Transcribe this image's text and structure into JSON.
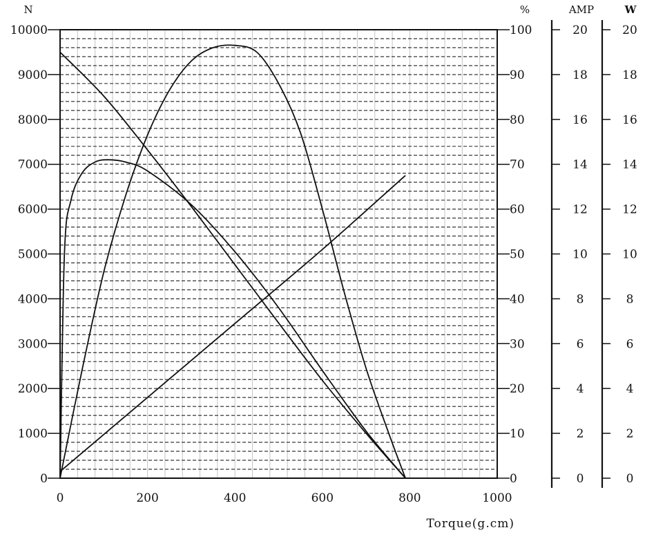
{
  "chart_data": {
    "type": "line",
    "xlabel": "Torque(g.cm)",
    "x_ticks": [
      "0",
      "200",
      "400",
      "600",
      "800",
      "1000"
    ],
    "xlim": [
      0,
      1000
    ],
    "axes": {
      "left": {
        "unit": "N",
        "ticks": [
          "0",
          "1000",
          "2000",
          "3000",
          "4000",
          "5000",
          "6000",
          "7000",
          "8000",
          "9000",
          "10000"
        ],
        "ylim": [
          0,
          10000
        ]
      },
      "right_percent": {
        "unit": "%",
        "ticks": [
          "0",
          "10",
          "20",
          "30",
          "40",
          "50",
          "60",
          "70",
          "80",
          "90",
          "100"
        ],
        "ylim": [
          0,
          100
        ]
      },
      "amp": {
        "unit": "AMP",
        "ticks": [
          "0",
          "2",
          "4",
          "6",
          "8",
          "10",
          "12",
          "14",
          "16",
          "18",
          "20"
        ],
        "ylim": [
          0,
          20
        ]
      },
      "watt": {
        "unit": "W",
        "ticks": [
          "0",
          "2",
          "4",
          "6",
          "8",
          "10",
          "12",
          "14",
          "16",
          "18",
          "20"
        ],
        "ylim": [
          0,
          20
        ]
      }
    },
    "grid": {
      "horizontal": "dashed",
      "vertical": "solid-light"
    },
    "series": [
      {
        "axis": "left",
        "points": [
          [
            0,
            9500
          ],
          [
            100,
            8520
          ],
          [
            200,
            7320
          ],
          [
            300,
            6060
          ],
          [
            400,
            4760
          ],
          [
            500,
            3460
          ],
          [
            600,
            2180
          ],
          [
            700,
            1000
          ],
          [
            790,
            0
          ]
        ]
      },
      {
        "axis": "right_percent",
        "points": [
          [
            0,
            0
          ],
          [
            10,
            50
          ],
          [
            25,
            62
          ],
          [
            50,
            68
          ],
          [
            80,
            70.5
          ],
          [
            110,
            71
          ],
          [
            150,
            70.5
          ],
          [
            200,
            68.5
          ],
          [
            300,
            61
          ],
          [
            400,
            50.5
          ],
          [
            500,
            38
          ],
          [
            600,
            24
          ],
          [
            700,
            10.5
          ],
          [
            790,
            0
          ]
        ]
      },
      {
        "axis": "amp",
        "points": [
          [
            0,
            0.3
          ],
          [
            200,
            3.6
          ],
          [
            400,
            6.9
          ],
          [
            600,
            10.2
          ],
          [
            790,
            13.5
          ]
        ]
      },
      {
        "axis": "watt",
        "points": [
          [
            0,
            0
          ],
          [
            50,
            4.8
          ],
          [
            100,
            9.2
          ],
          [
            150,
            12.6
          ],
          [
            200,
            15.3
          ],
          [
            250,
            17.3
          ],
          [
            300,
            18.6
          ],
          [
            350,
            19.2
          ],
          [
            400,
            19.3
          ],
          [
            450,
            19.0
          ],
          [
            500,
            17.6
          ],
          [
            550,
            15.4
          ],
          [
            600,
            12.0
          ],
          [
            650,
            8.3
          ],
          [
            700,
            4.9
          ],
          [
            750,
            2.1
          ],
          [
            790,
            0
          ]
        ]
      }
    ]
  }
}
